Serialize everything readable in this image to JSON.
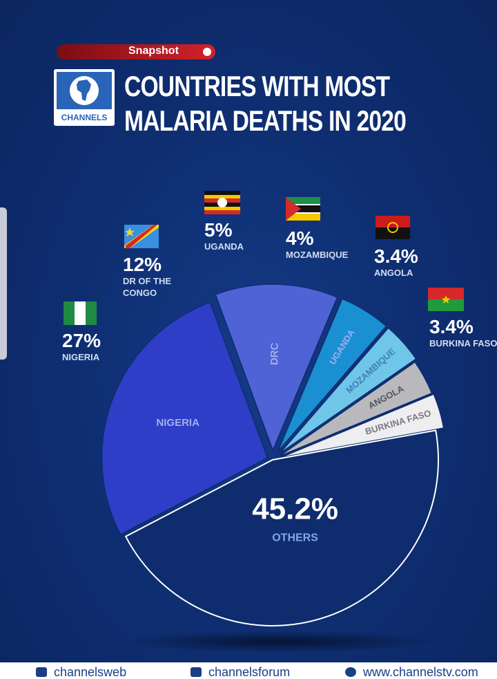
{
  "badge": {
    "label": "Snapshot"
  },
  "logo": {
    "text": "CHANNELS"
  },
  "title": {
    "line1": "COUNTRIES WITH MOST",
    "line2": "MALARIA DEATHS IN 2020"
  },
  "chart_data": {
    "type": "pie",
    "title": "COUNTRIES WITH MOST MALARIA DEATHS IN 2020",
    "slices": [
      {
        "key": "nigeria",
        "label": "NIGERIA",
        "slice_label": "NIGERIA",
        "value": 27,
        "display": "27%",
        "color": "#2e3ec6",
        "label_lines": [
          "NIGERIA"
        ]
      },
      {
        "key": "drc",
        "label": "DR OF THE CONGO",
        "slice_label": "DRC",
        "value": 12,
        "display": "12%",
        "color": "#4f62d6",
        "label_lines": [
          "DR OF THE",
          "CONGO"
        ]
      },
      {
        "key": "uganda",
        "label": "UGANDA",
        "slice_label": "UGANDA",
        "value": 5,
        "display": "5%",
        "color": "#1a8fd2",
        "label_lines": [
          "UGANDA"
        ]
      },
      {
        "key": "mozambique",
        "label": "MOZAMBIQUE",
        "slice_label": "MOZAMBIQUE",
        "value": 4,
        "display": "4%",
        "color": "#6fc6e8",
        "label_lines": [
          "MOZAMBIQUE"
        ]
      },
      {
        "key": "angola",
        "label": "ANGOLA",
        "slice_label": "ANGOLA",
        "value": 3.4,
        "display": "3.4%",
        "color": "#b9b9bd",
        "label_lines": [
          "ANGOLA"
        ]
      },
      {
        "key": "burkina",
        "label": "BURKINA FASO",
        "slice_label": "BURKINA FASO",
        "value": 3.4,
        "display": "3.4%",
        "color": "#eeeef0",
        "label_lines": [
          "BURKINA FASO"
        ]
      },
      {
        "key": "others",
        "label": "OTHERS",
        "slice_label": "OTHERS",
        "value": 45.2,
        "display": "45.2%",
        "color": "#0e2c6e"
      }
    ]
  },
  "footer": [
    {
      "icon": "youtube-icon",
      "text": "channelsweb"
    },
    {
      "icon": "facebook-icon",
      "text": "channelsforum"
    },
    {
      "icon": "globe-icon",
      "text": "www.channelstv.com"
    }
  ]
}
